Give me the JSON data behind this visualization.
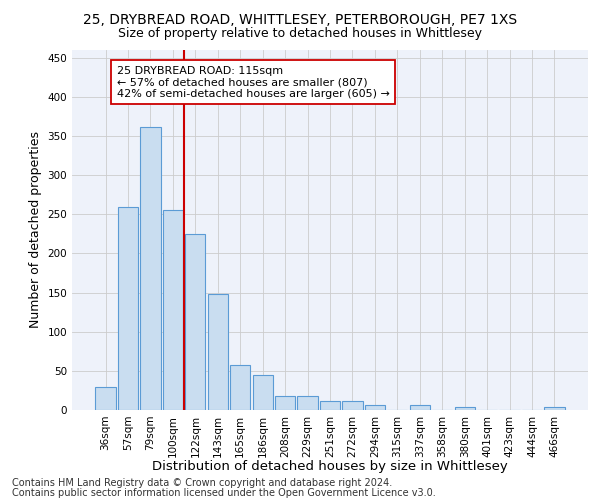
{
  "title_line1": "25, DRYBREAD ROAD, WHITTLESEY, PETERBOROUGH, PE7 1XS",
  "title_line2": "Size of property relative to detached houses in Whittlesey",
  "xlabel": "Distribution of detached houses by size in Whittlesey",
  "ylabel": "Number of detached properties",
  "bar_color": "#c9ddf0",
  "bar_edge_color": "#5b9bd5",
  "bins": [
    "36sqm",
    "57sqm",
    "79sqm",
    "100sqm",
    "122sqm",
    "143sqm",
    "165sqm",
    "186sqm",
    "208sqm",
    "229sqm",
    "251sqm",
    "272sqm",
    "294sqm",
    "315sqm",
    "337sqm",
    "358sqm",
    "380sqm",
    "401sqm",
    "423sqm",
    "444sqm",
    "466sqm"
  ],
  "values": [
    30,
    260,
    362,
    256,
    225,
    148,
    57,
    45,
    18,
    18,
    11,
    11,
    7,
    0,
    6,
    0,
    4,
    0,
    0,
    0,
    4
  ],
  "annotation_text_line1": "25 DRYBREAD ROAD: 115sqm",
  "annotation_text_line2": "← 57% of detached houses are smaller (807)",
  "annotation_text_line3": "42% of semi-detached houses are larger (605) →",
  "annotation_box_color": "#ffffff",
  "annotation_box_edgecolor": "#cc0000",
  "vline_color": "#cc0000",
  "vline_pos": 3.5,
  "ylim": [
    0,
    460
  ],
  "yticks": [
    0,
    50,
    100,
    150,
    200,
    250,
    300,
    350,
    400,
    450
  ],
  "grid_color": "#cccccc",
  "background_color": "#eef2fa",
  "footer_line1": "Contains HM Land Registry data © Crown copyright and database right 2024.",
  "footer_line2": "Contains public sector information licensed under the Open Government Licence v3.0.",
  "title_fontsize": 10,
  "subtitle_fontsize": 9,
  "axis_label_fontsize": 9,
  "tick_fontsize": 7.5,
  "annotation_fontsize": 8,
  "footer_fontsize": 7
}
